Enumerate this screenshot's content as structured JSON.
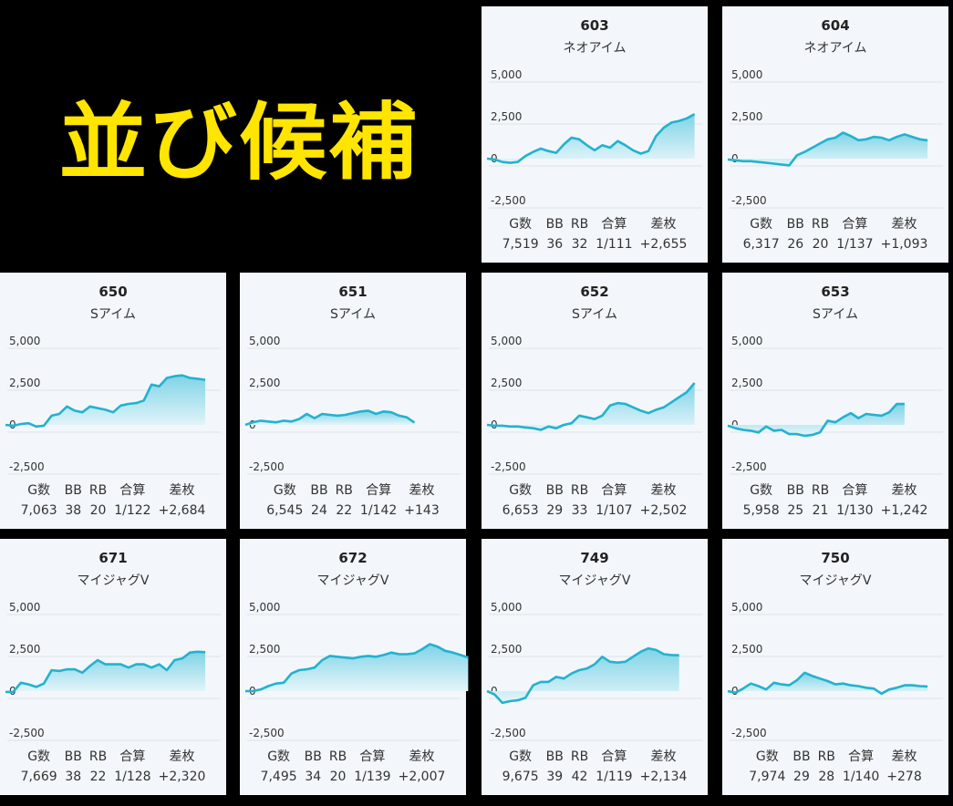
{
  "banner": {
    "title": "並び候補"
  },
  "chart_data": [
    {
      "type": "area",
      "title": "603",
      "subtitle": "ネオアイム",
      "ylim": [
        -2500,
        5000
      ],
      "yticks": [
        "5,000",
        "2,500",
        "0",
        "-2,500"
      ],
      "values": [
        0,
        -50,
        -200,
        -250,
        -200,
        150,
        400,
        600,
        450,
        350,
        850,
        1250,
        1150,
        800,
        500,
        800,
        650,
        1050,
        800,
        500,
        300,
        450,
        1350,
        1850,
        2150,
        2250,
        2400,
        2655
      ],
      "stats": {
        "headers": [
          "G数",
          "BB",
          "RB",
          "合算",
          "差枚"
        ],
        "values": [
          "7,519",
          "36",
          "32",
          "1/111",
          "+2,655"
        ]
      }
    },
    {
      "type": "area",
      "title": "604",
      "subtitle": "ネオアイム",
      "ylim": [
        -2500,
        5000
      ],
      "yticks": [
        "5,000",
        "2,500",
        "0",
        "-2,500"
      ],
      "values": [
        -50,
        -100,
        -150,
        -150,
        -200,
        -250,
        -300,
        -350,
        -400,
        200,
        400,
        650,
        900,
        1150,
        1250,
        1550,
        1350,
        1100,
        1150,
        1300,
        1250,
        1100,
        1300,
        1450,
        1300,
        1150,
        1093
      ],
      "stats": {
        "headers": [
          "G数",
          "BB",
          "RB",
          "合算",
          "差枚"
        ],
        "values": [
          "6,317",
          "26",
          "20",
          "1/137",
          "+1,093"
        ]
      }
    },
    {
      "type": "area",
      "title": "650",
      "subtitle": "Sアイム",
      "ylim": [
        -2500,
        5000
      ],
      "yticks": [
        "5,000",
        "2,500",
        "0",
        "-2,500"
      ],
      "values": [
        0,
        -50,
        50,
        100,
        -100,
        -50,
        550,
        650,
        1100,
        850,
        750,
        1100,
        1000,
        900,
        750,
        1150,
        1250,
        1300,
        1450,
        2400,
        2300,
        2800,
        2900,
        2950,
        2800,
        2750,
        2684
      ],
      "stats": {
        "headers": [
          "G数",
          "BB",
          "RB",
          "合算",
          "差枚"
        ],
        "values": [
          "7,063",
          "38",
          "20",
          "1/122",
          "+2,684"
        ]
      }
    },
    {
      "type": "area",
      "title": "651",
      "subtitle": "Sアイム",
      "ylim": [
        -2500,
        5000
      ],
      "yticks": [
        "5,000",
        "2,500",
        "0",
        "-2,500"
      ],
      "values": [
        0,
        150,
        250,
        200,
        150,
        250,
        200,
        350,
        650,
        400,
        650,
        600,
        550,
        600,
        700,
        800,
        850,
        650,
        800,
        750,
        550,
        450,
        143
      ],
      "stats": {
        "headers": [
          "G数",
          "BB",
          "RB",
          "合算",
          "差枚"
        ],
        "values": [
          "6,545",
          "24",
          "22",
          "1/142",
          "+143"
        ]
      }
    },
    {
      "type": "area",
      "title": "652",
      "subtitle": "Sアイム",
      "ylim": [
        -2500,
        5000
      ],
      "yticks": [
        "5,000",
        "2,500",
        "0",
        "-2,500"
      ],
      "values": [
        0,
        -50,
        -50,
        -100,
        -100,
        -150,
        -200,
        -300,
        -100,
        -200,
        0,
        100,
        550,
        450,
        350,
        550,
        1150,
        1300,
        1250,
        1050,
        850,
        700,
        900,
        1050,
        1350,
        1650,
        1950,
        2502
      ],
      "stats": {
        "headers": [
          "G数",
          "BB",
          "RB",
          "合算",
          "差枚"
        ],
        "values": [
          "6,653",
          "29",
          "33",
          "1/107",
          "+2,502"
        ]
      }
    },
    {
      "type": "area",
      "title": "653",
      "subtitle": "Sアイム",
      "ylim": [
        -2500,
        5000
      ],
      "yticks": [
        "5,000",
        "2,500",
        "0",
        "-2,500"
      ],
      "values": [
        -50,
        -200,
        -300,
        -350,
        -450,
        -100,
        -350,
        -300,
        -550,
        -550,
        -650,
        -600,
        -450,
        250,
        150,
        450,
        700,
        400,
        650,
        600,
        550,
        750,
        1250,
        1242
      ],
      "stats": {
        "headers": [
          "G数",
          "BB",
          "RB",
          "合算",
          "差枚"
        ],
        "values": [
          "5,958",
          "25",
          "21",
          "1/130",
          "+1,242"
        ]
      }
    },
    {
      "type": "area",
      "title": "671",
      "subtitle": "マイジャグV",
      "ylim": [
        -2500,
        5000
      ],
      "yticks": [
        "5,000",
        "2,500",
        "0",
        "-2,500"
      ],
      "values": [
        -50,
        -50,
        500,
        400,
        250,
        450,
        1250,
        1200,
        1300,
        1300,
        1100,
        1500,
        1850,
        1600,
        1600,
        1600,
        1400,
        1600,
        1600,
        1400,
        1600,
        1250,
        1850,
        1950,
        2300,
        2350,
        2320
      ],
      "stats": {
        "headers": [
          "G数",
          "BB",
          "RB",
          "合算",
          "差枚"
        ],
        "values": [
          "7,669",
          "38",
          "22",
          "1/128",
          "+2,320"
        ]
      }
    },
    {
      "type": "area",
      "title": "672",
      "subtitle": "マイジャグV",
      "ylim": [
        -2500,
        5000
      ],
      "yticks": [
        "5,000",
        "2,500",
        "0",
        "-2,500"
      ],
      "values": [
        0,
        0,
        100,
        300,
        450,
        500,
        1050,
        1250,
        1300,
        1400,
        1850,
        2100,
        2050,
        2000,
        1950,
        2050,
        2100,
        2050,
        2150,
        2300,
        2200,
        2200,
        2250,
        2500,
        2800,
        2650,
        2400,
        2300,
        2150,
        2007
      ],
      "stats": {
        "headers": [
          "G数",
          "BB",
          "RB",
          "合算",
          "差枚"
        ],
        "values": [
          "7,495",
          "34",
          "20",
          "1/139",
          "+2,007"
        ]
      }
    },
    {
      "type": "area",
      "title": "749",
      "subtitle": "マイジャグV",
      "ylim": [
        -2500,
        5000
      ],
      "yticks": [
        "5,000",
        "2,500",
        "0",
        "-2,500"
      ],
      "values": [
        0,
        -200,
        -700,
        -600,
        -550,
        -400,
        350,
        550,
        550,
        850,
        750,
        1050,
        1250,
        1350,
        1600,
        2050,
        1750,
        1700,
        1750,
        2050,
        2350,
        2550,
        2450,
        2200,
        2150,
        2134
      ],
      "stats": {
        "headers": [
          "G数",
          "BB",
          "RB",
          "合算",
          "差枚"
        ],
        "values": [
          "9,675",
          "39",
          "42",
          "1/119",
          "+2,134"
        ]
      }
    },
    {
      "type": "area",
      "title": "750",
      "subtitle": "マイジャグV",
      "ylim": [
        -2500,
        5000
      ],
      "yticks": [
        "5,000",
        "2,500",
        "0",
        "-2,500"
      ],
      "values": [
        0,
        -100,
        150,
        450,
        300,
        100,
        500,
        400,
        350,
        650,
        1100,
        900,
        750,
        600,
        400,
        450,
        350,
        300,
        200,
        150,
        -150,
        100,
        200,
        350,
        350,
        300,
        278
      ],
      "stats": {
        "headers": [
          "G数",
          "BB",
          "RB",
          "合算",
          "差枚"
        ],
        "values": [
          "7,974",
          "29",
          "28",
          "1/140",
          "+278"
        ]
      }
    }
  ],
  "colors": {
    "line": "#23B2CF",
    "fill_top": "#7FD3E6",
    "fill_bottom": "#E4F5FA",
    "grid": "#DCE3EA",
    "banner": "#FFE500"
  }
}
